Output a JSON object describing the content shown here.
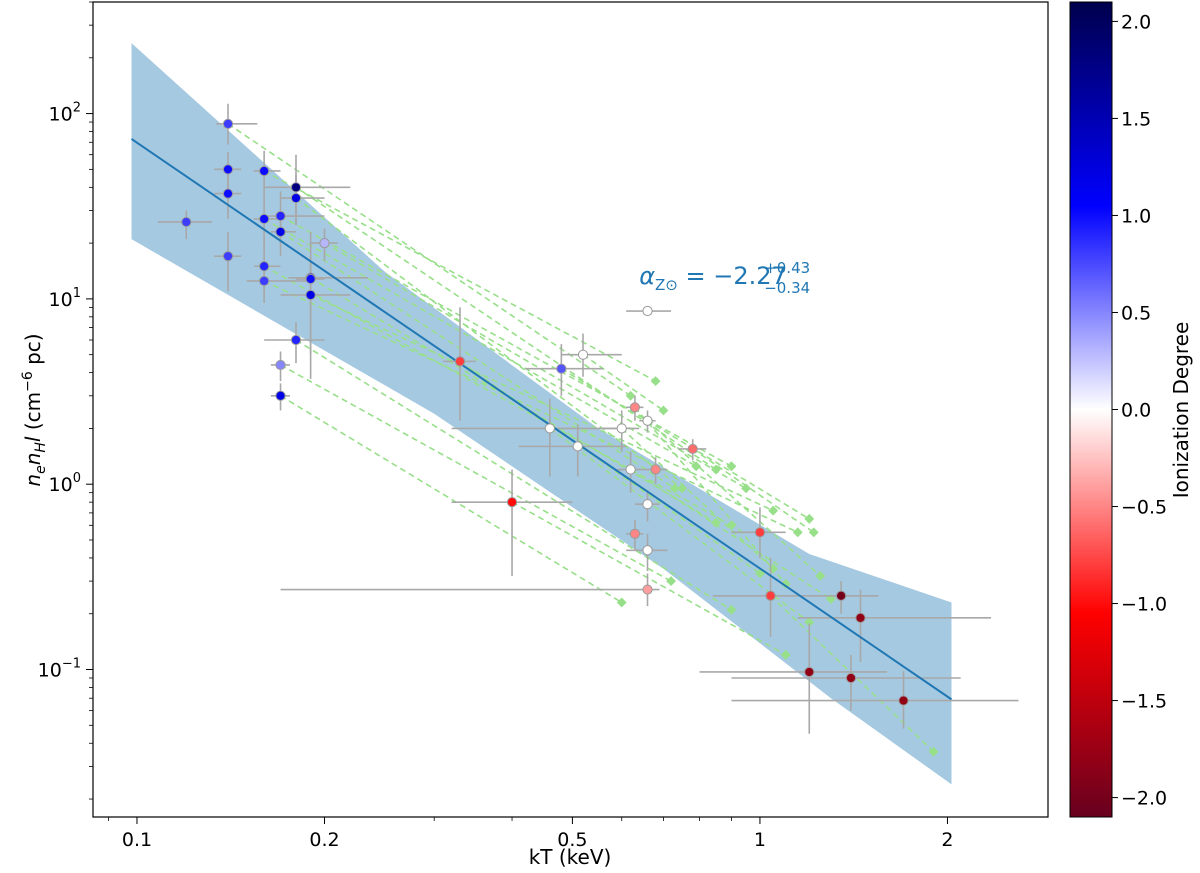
{
  "chart_data": {
    "type": "scatter",
    "title": "",
    "xlabel": "kT (keV)",
    "ylabel_parts": {
      "base": "n",
      "sub1": "e",
      "base2": "n",
      "sub2": "H",
      "base3": "l",
      "unit": "(cm",
      "exp": "−6",
      "unit_end": " pc)"
    },
    "x_scale": "log",
    "y_scale": "log",
    "xlim": [
      0.085,
      2.9
    ],
    "ylim": [
      0.016,
      400
    ],
    "x_ticks": [
      {
        "value": 0.1,
        "label": "0.1"
      },
      {
        "value": 0.2,
        "label": "0.2"
      },
      {
        "value": 0.5,
        "label": "0.5"
      },
      {
        "value": 1,
        "label": "1"
      },
      {
        "value": 2,
        "label": "2"
      }
    ],
    "y_ticks": [
      {
        "value": 0.1,
        "base": "10",
        "exp": "−1"
      },
      {
        "value": 1,
        "base": "10",
        "exp": "0"
      },
      {
        "value": 10,
        "base": "10",
        "exp": "1"
      },
      {
        "value": 100,
        "base": "10",
        "exp": "2"
      }
    ],
    "grid": false,
    "fit": {
      "name": "power-law fit",
      "color": "#1f77b4",
      "line": [
        [
          0.098,
          73
        ],
        [
          2.03,
          0.069
        ]
      ],
      "band_upper": [
        [
          0.098,
          240
        ],
        [
          0.25,
          14
        ],
        [
          0.55,
          2.0
        ],
        [
          1.2,
          0.42
        ],
        [
          2.03,
          0.23
        ]
      ],
      "band_lower": [
        [
          0.098,
          21
        ],
        [
          0.3,
          2.4
        ],
        [
          0.7,
          0.35
        ],
        [
          1.3,
          0.07
        ],
        [
          2.03,
          0.024
        ]
      ]
    },
    "annotation": {
      "text": "α",
      "sub": "Z⊙",
      "eq": " = −2.27",
      "sup": "+0.43",
      "subv": "−0.34",
      "x": 0.64,
      "y": 12
    },
    "colorbar": {
      "label": "Ionization Degree",
      "range": [
        -2.1,
        2.1
      ],
      "ticks": [
        {
          "value": 2.0,
          "label": "2.0"
        },
        {
          "value": 1.5,
          "label": "1.5"
        },
        {
          "value": 1.0,
          "label": "1.0"
        },
        {
          "value": 0.5,
          "label": "0.5"
        },
        {
          "value": 0.0,
          "label": "0.0"
        },
        {
          "value": -0.5,
          "label": "−0.5"
        },
        {
          "value": -1.0,
          "label": "−1.0"
        },
        {
          "value": -1.5,
          "label": "−1.5"
        },
        {
          "value": -2.0,
          "label": "−2.0"
        }
      ],
      "colormap": [
        "#67001f",
        "#ff0000",
        "#ffffff",
        "#0000ff",
        "#00004d"
      ]
    },
    "points": [
      {
        "x": 0.12,
        "y": 26,
        "xerr": [
          0.012,
          0.012
        ],
        "yerr": [
          5,
          4
        ],
        "c": 0.8
      },
      {
        "x": 0.14,
        "y": 88,
        "xerr": [
          0.006,
          0.016
        ],
        "yerr": [
          20,
          25
        ],
        "c": 0.8
      },
      {
        "x": 0.14,
        "y": 50,
        "xerr": [
          0.007,
          0.007
        ],
        "yerr": [
          12,
          12
        ],
        "c": 1.0
      },
      {
        "x": 0.14,
        "y": 37,
        "xerr": [
          0.007,
          0.007
        ],
        "yerr": [
          10,
          12
        ],
        "c": 1.0
      },
      {
        "x": 0.14,
        "y": 17,
        "xerr": [
          0.007,
          0.007
        ],
        "yerr": [
          6,
          6
        ],
        "c": 0.8
      },
      {
        "x": 0.16,
        "y": 49,
        "xerr": [
          0.006,
          0.01
        ],
        "yerr": [
          12,
          14
        ],
        "c": 1.0
      },
      {
        "x": 0.16,
        "y": 27,
        "xerr": [
          0.006,
          0.008
        ],
        "yerr": [
          8,
          10
        ],
        "c": 1.0
      },
      {
        "x": 0.16,
        "y": 15,
        "xerr": [
          0.006,
          0.01
        ],
        "yerr": [
          4,
          5
        ],
        "c": 0.9
      },
      {
        "x": 0.16,
        "y": 12.5,
        "xerr": [
          0.01,
          0.03
        ],
        "yerr": [
          3,
          3
        ],
        "c": 0.8
      },
      {
        "x": 0.17,
        "y": 28,
        "xerr": [
          0.01,
          0.03
        ],
        "yerr": [
          8,
          10
        ],
        "c": 0.9
      },
      {
        "x": 0.17,
        "y": 23,
        "xerr": [
          0.006,
          0.01
        ],
        "yerr": [
          6,
          7
        ],
        "c": 1.2
      },
      {
        "x": 0.18,
        "y": 40,
        "xerr": [
          0.02,
          0.04
        ],
        "yerr": [
          15,
          20
        ],
        "c": 1.8
      },
      {
        "x": 0.18,
        "y": 35,
        "xerr": [
          0.01,
          0.02
        ],
        "yerr": [
          10,
          12
        ],
        "c": 1.2
      },
      {
        "x": 0.19,
        "y": 13,
        "xerr": [
          0.015,
          0.045
        ],
        "yerr": [
          8,
          10
        ],
        "c": 1.3
      },
      {
        "x": 0.19,
        "y": 12.8,
        "xerr": [
          0.01,
          0.01
        ],
        "yerr": [
          3,
          4
        ],
        "c": 1.0
      },
      {
        "x": 0.19,
        "y": 10.5,
        "xerr": [
          0.02,
          0.03
        ],
        "yerr": [
          6.8,
          5
        ],
        "c": 1.2
      },
      {
        "x": 0.2,
        "y": 20,
        "xerr": [
          0.01,
          0.01
        ],
        "yerr": [
          4,
          4
        ],
        "c": 0.3
      },
      {
        "x": 0.18,
        "y": 6,
        "xerr": [
          0.02,
          0.02
        ],
        "yerr": [
          1.5,
          1.5
        ],
        "c": 0.9
      },
      {
        "x": 0.17,
        "y": 4.4,
        "xerr": [
          0.006,
          0.006
        ],
        "yerr": [
          0.8,
          0.8
        ],
        "c": 0.5
      },
      {
        "x": 0.17,
        "y": 3,
        "xerr": [
          0.006,
          0.006
        ],
        "yerr": [
          0.5,
          0.5
        ],
        "c": 1.2
      },
      {
        "x": 0.33,
        "y": 4.6,
        "xerr": [
          0.02,
          0.02
        ],
        "yerr": [
          2.4,
          4.4
        ],
        "c": -0.8
      },
      {
        "x": 0.4,
        "y": 0.8,
        "xerr": [
          0.08,
          0.1
        ],
        "yerr": [
          0.48,
          0.4
        ],
        "c": -1.0
      },
      {
        "x": 0.46,
        "y": 2.0,
        "xerr": [
          0.14,
          0.14
        ],
        "yerr": [
          0.9,
          0.9
        ],
        "c": 0.0
      },
      {
        "x": 0.48,
        "y": 4.2,
        "xerr": [
          0.06,
          0.08
        ],
        "yerr": [
          1.2,
          1.5
        ],
        "c": 0.7
      },
      {
        "x": 0.51,
        "y": 1.6,
        "xerr": [
          0.1,
          0.1
        ],
        "yerr": [
          0.5,
          0.5
        ],
        "c": 0.0
      },
      {
        "x": 0.52,
        "y": 5.0,
        "xerr": [
          0.04,
          0.08
        ],
        "yerr": [
          1.2,
          1.5
        ],
        "c": 0.0
      },
      {
        "x": 0.6,
        "y": 2.0,
        "xerr": [
          0.04,
          0.04
        ],
        "yerr": [
          0.5,
          0.5
        ],
        "c": 0.0
      },
      {
        "x": 0.62,
        "y": 1.2,
        "xerr": [
          0.03,
          0.03
        ],
        "yerr": [
          0.3,
          0.3
        ],
        "c": 0.0
      },
      {
        "x": 0.63,
        "y": 2.6,
        "xerr": [
          0.02,
          0.02
        ],
        "yerr": [
          0.4,
          0.4
        ],
        "c": -0.5
      },
      {
        "x": 0.63,
        "y": 0.54,
        "xerr": [
          0.02,
          0.02
        ],
        "yerr": [
          0.1,
          0.1
        ],
        "c": -0.5
      },
      {
        "x": 0.66,
        "y": 8.6,
        "xerr": [
          0.05,
          0.06
        ],
        "yerr": [
          0,
          0
        ],
        "c": 0.0
      },
      {
        "x": 0.66,
        "y": 2.2,
        "xerr": [
          0.02,
          0.02
        ],
        "yerr": [
          0.3,
          0.3
        ],
        "c": 0.0
      },
      {
        "x": 0.66,
        "y": 0.78,
        "xerr": [
          0.03,
          0.03
        ],
        "yerr": [
          0.15,
          0.15
        ],
        "c": 0.0
      },
      {
        "x": 0.66,
        "y": 0.44,
        "xerr": [
          0.05,
          0.05
        ],
        "yerr": [
          0.1,
          0.1
        ],
        "c": 0.0
      },
      {
        "x": 0.66,
        "y": 0.27,
        "xerr": [
          0.49,
          0.03
        ],
        "yerr": [
          0.05,
          0.06
        ],
        "c": -0.4
      },
      {
        "x": 0.68,
        "y": 1.2,
        "xerr": [
          0.03,
          0.03
        ],
        "yerr": [
          0.2,
          0.2
        ],
        "c": -0.5
      },
      {
        "x": 0.78,
        "y": 1.55,
        "xerr": [
          0.04,
          0.04
        ],
        "yerr": [
          0.2,
          0.2
        ],
        "c": -0.6
      },
      {
        "x": 1.0,
        "y": 0.55,
        "xerr": [
          0.1,
          0.1
        ],
        "yerr": [
          0.15,
          0.2
        ],
        "c": -0.8
      },
      {
        "x": 1.04,
        "y": 0.25,
        "xerr": [
          0.2,
          0.3
        ],
        "yerr": [
          0.1,
          0.15
        ],
        "c": -0.8
      },
      {
        "x": 1.2,
        "y": 0.097,
        "xerr": [
          0.4,
          0.4
        ],
        "yerr": [
          0.052,
          0.08
        ],
        "c": -1.8
      },
      {
        "x": 1.35,
        "y": 0.25,
        "xerr": [
          0.15,
          0.2
        ],
        "yerr": [
          0.05,
          0.05
        ],
        "c": -2.0
      },
      {
        "x": 1.4,
        "y": 0.09,
        "xerr": [
          0.5,
          0.7
        ],
        "yerr": [
          0.03,
          0.03
        ],
        "c": -1.8
      },
      {
        "x": 1.45,
        "y": 0.19,
        "xerr": [
          0.3,
          0.9
        ],
        "yerr": [
          0.08,
          0.08
        ],
        "c": -1.8
      },
      {
        "x": 1.7,
        "y": 0.068,
        "xerr": [
          0.8,
          0.9
        ],
        "yerr": [
          0.02,
          0.03
        ],
        "c": -1.8
      }
    ],
    "projections": [
      {
        "from": [
          0.14,
          88
        ],
        "to": [
          0.62,
          3.0
        ]
      },
      {
        "from": [
          0.16,
          49
        ],
        "to": [
          0.68,
          3.6
        ]
      },
      {
        "from": [
          0.16,
          27
        ],
        "to": [
          0.79,
          1.25
        ]
      },
      {
        "from": [
          0.17,
          28
        ],
        "to": [
          0.9,
          1.25
        ]
      },
      {
        "from": [
          0.18,
          40
        ],
        "to": [
          0.85,
          1.2
        ]
      },
      {
        "from": [
          0.18,
          35
        ],
        "to": [
          0.75,
          0.95
        ]
      },
      {
        "from": [
          0.17,
          23
        ],
        "to": [
          0.73,
          0.95
        ]
      },
      {
        "from": [
          0.2,
          20
        ],
        "to": [
          0.95,
          0.95
        ]
      },
      {
        "from": [
          0.19,
          13
        ],
        "to": [
          0.85,
          0.62
        ]
      },
      {
        "from": [
          0.19,
          10.5
        ],
        "to": [
          1.05,
          0.72
        ]
      },
      {
        "from": [
          0.16,
          15
        ],
        "to": [
          0.9,
          0.6
        ]
      },
      {
        "from": [
          0.16,
          12.5
        ],
        "to": [
          1.15,
          0.55
        ]
      },
      {
        "from": [
          0.18,
          6
        ],
        "to": [
          0.9,
          0.21
        ]
      },
      {
        "from": [
          0.17,
          4.4
        ],
        "to": [
          0.72,
          0.3
        ]
      },
      {
        "from": [
          0.17,
          3.0
        ],
        "to": [
          0.6,
          0.23
        ]
      },
      {
        "from": [
          0.48,
          4.2
        ],
        "to": [
          1.2,
          0.65
        ]
      },
      {
        "from": [
          0.63,
          2.6
        ],
        "to": [
          1.1,
          0.29
        ]
      },
      {
        "from": [
          0.66,
          2.2
        ],
        "to": [
          1.25,
          0.32
        ]
      },
      {
        "from": [
          0.6,
          2.0
        ],
        "to": [
          1.05,
          0.35
        ]
      },
      {
        "from": [
          0.52,
          5.0
        ],
        "to": [
          0.7,
          2.5
        ]
      },
      {
        "from": [
          0.46,
          2.0
        ],
        "to": [
          1.2,
          0.18
        ]
      },
      {
        "from": [
          0.33,
          4.6
        ],
        "to": [
          1.0,
          0.33
        ]
      },
      {
        "from": [
          0.4,
          0.8
        ],
        "to": [
          1.1,
          0.12
        ]
      },
      {
        "from": [
          0.62,
          1.2
        ],
        "to": [
          1.3,
          0.24
        ]
      },
      {
        "from": [
          0.78,
          1.55
        ],
        "to": [
          1.22,
          0.55
        ]
      },
      {
        "from": [
          1.04,
          0.25
        ],
        "to": [
          1.9,
          0.036
        ]
      }
    ],
    "projection_color": "#98df8a"
  }
}
